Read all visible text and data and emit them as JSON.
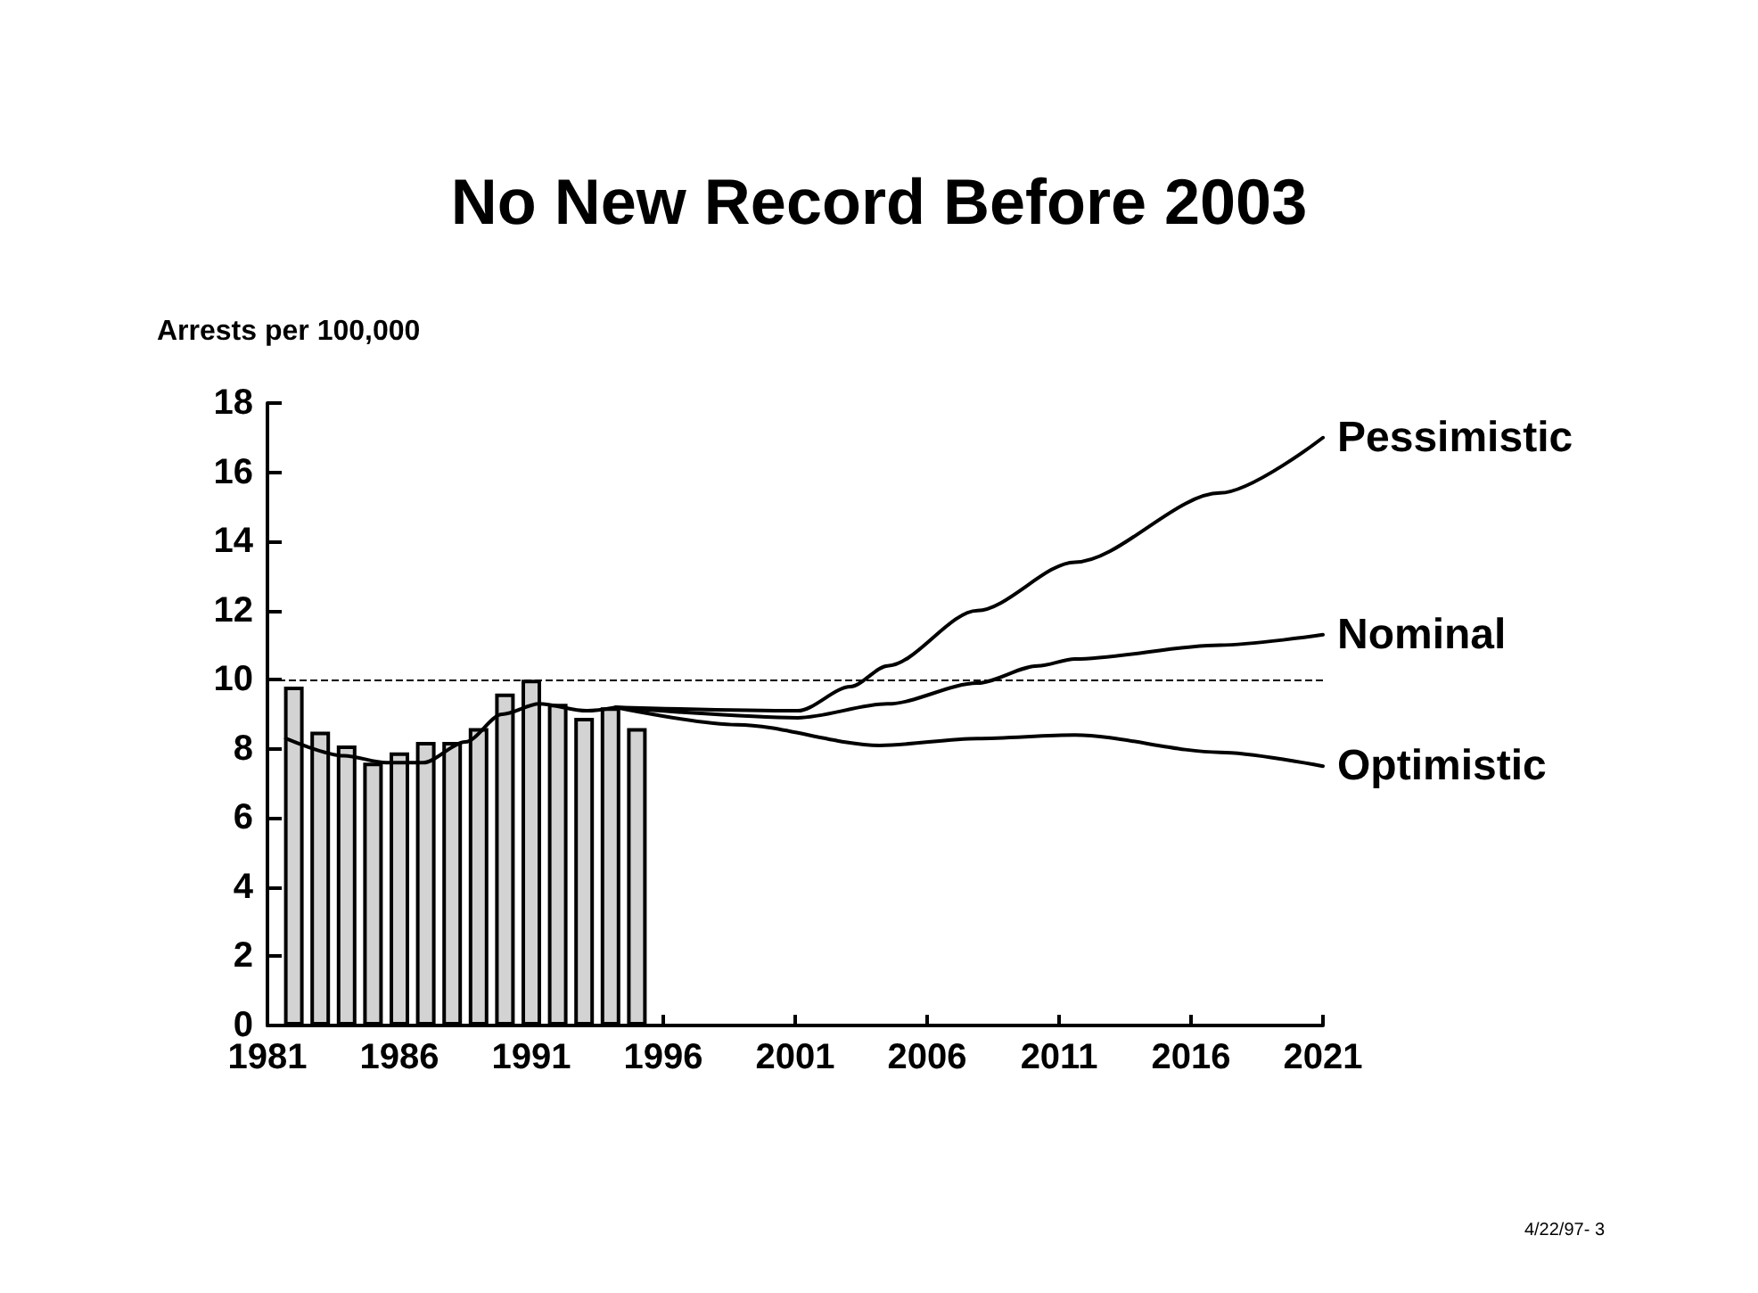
{
  "chart_data": {
    "type": "bar",
    "title": "No New Record Before 2003",
    "ylabel": "Arrests per 100,000",
    "annotations": [
      "4/22/97- 3"
    ],
    "series": [
      {
        "color": "#d3d3d3",
        "x": [
          1982,
          1983,
          1984,
          1985,
          1986,
          1987,
          1988,
          1989,
          1990,
          1991,
          1992,
          1993,
          1994,
          1995
        ],
        "values": [
          9.8,
          8.5,
          8.1,
          7.6,
          7.9,
          8.2,
          8.2,
          8.6,
          9.6,
          10.0,
          9.3,
          8.9,
          9.2,
          8.6
        ]
      },
      {
        "type": "line",
        "color": "#000000",
        "x": [
          1981.7,
          1983.9,
          1985.5,
          1986.9,
          1988.5,
          1989.9,
          1991.3,
          1993.1,
          1994.2
        ],
        "values": [
          8.3,
          7.8,
          7.6,
          7.6,
          8.2,
          9.0,
          9.3,
          9.1,
          9.2
        ]
      },
      {
        "type": "line",
        "name": "Pessimistic",
        "color": "#000000",
        "x": [
          1994.2,
          2001.1,
          2003.1,
          2004.5,
          2007.9,
          2011.6,
          2017.1,
          2021
        ],
        "values": [
          9.2,
          9.1,
          9.8,
          10.4,
          12.0,
          13.4,
          15.4,
          17.0
        ]
      },
      {
        "type": "line",
        "name": "Nominal",
        "color": "#000000",
        "x": [
          1994.2,
          2001.1,
          2004.5,
          2007.9,
          2010.2,
          2011.6,
          2017.1,
          2021
        ],
        "values": [
          9.2,
          8.9,
          9.3,
          9.9,
          10.4,
          10.6,
          11.0,
          11.3
        ]
      },
      {
        "type": "line",
        "name": "Optimistic",
        "color": "#000000",
        "x": [
          1994.2,
          1998.8,
          2004.2,
          2007.9,
          2011.6,
          2017.1,
          2021
        ],
        "values": [
          9.2,
          8.7,
          8.1,
          8.3,
          8.4,
          7.9,
          7.5
        ]
      }
    ],
    "xlim": [
      1981,
      2021
    ],
    "xticks": [
      1981,
      1986,
      1991,
      1996,
      2001,
      2006,
      2011,
      2016,
      2021
    ],
    "ylim": [
      0,
      18
    ],
    "yticks": [
      0,
      2,
      4,
      6,
      8,
      10,
      12,
      14,
      16,
      18
    ],
    "ref_lines": [
      {
        "axis": "y",
        "value": 10,
        "line_style": "dashed"
      }
    ],
    "grid": false,
    "legend": false,
    "marker": "none",
    "line_style": "solid"
  }
}
